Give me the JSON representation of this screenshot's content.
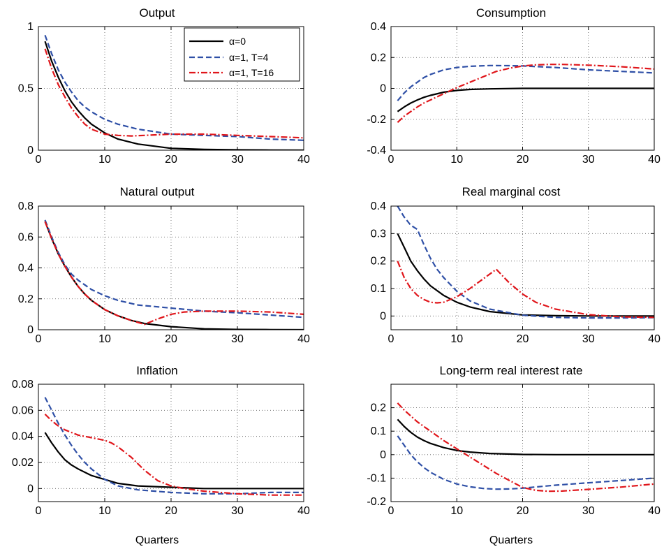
{
  "figure": {
    "legend": [
      {
        "label": "α=0",
        "color": "#000000",
        "dash": "solid"
      },
      {
        "label": "α=1, T=4",
        "color": "#2e4fa6",
        "dash": "dashed"
      },
      {
        "label": "α=1, T=16",
        "color": "#e0161b",
        "dash": "dashdot"
      }
    ]
  },
  "chart_data": [
    {
      "type": "line",
      "title": "Output",
      "xlabel": "",
      "ylabel": "",
      "xlim": [
        0,
        40
      ],
      "ylim": [
        0,
        1
      ],
      "xticks": [
        0,
        10,
        20,
        30,
        40
      ],
      "yticks": [
        0,
        0.5,
        1
      ],
      "ytick_labels": [
        "0",
        "0.5",
        "1"
      ],
      "grid": true,
      "legend": "top-right",
      "series": [
        {
          "name": "α=0",
          "x": [
            1,
            2,
            3,
            4,
            5,
            6,
            7,
            8,
            10,
            12,
            15,
            20,
            25,
            30,
            35,
            40
          ],
          "y": [
            0.88,
            0.72,
            0.59,
            0.48,
            0.39,
            0.32,
            0.26,
            0.21,
            0.14,
            0.09,
            0.05,
            0.015,
            0.006,
            0.003,
            0.001,
            0.0
          ]
        },
        {
          "name": "α=1, T=4",
          "x": [
            1,
            2,
            3,
            4,
            5,
            6,
            7,
            8,
            10,
            12,
            15,
            20,
            25,
            30,
            35,
            40
          ],
          "y": [
            0.93,
            0.78,
            0.65,
            0.55,
            0.47,
            0.4,
            0.35,
            0.31,
            0.25,
            0.21,
            0.17,
            0.13,
            0.12,
            0.11,
            0.09,
            0.08
          ]
        },
        {
          "name": "α=1, T=16",
          "x": [
            1,
            2,
            3,
            4,
            5,
            6,
            7,
            8,
            10,
            12,
            14,
            16,
            20,
            25,
            30,
            35,
            40
          ],
          "y": [
            0.82,
            0.66,
            0.53,
            0.43,
            0.34,
            0.27,
            0.21,
            0.17,
            0.13,
            0.12,
            0.115,
            0.12,
            0.13,
            0.13,
            0.12,
            0.11,
            0.1
          ]
        }
      ]
    },
    {
      "type": "line",
      "title": "Consumption",
      "xlabel": "",
      "ylabel": "",
      "xlim": [
        0,
        40
      ],
      "ylim": [
        -0.4,
        0.4
      ],
      "xticks": [
        0,
        10,
        20,
        30,
        40
      ],
      "yticks": [
        -0.4,
        -0.2,
        0,
        0.2,
        0.4
      ],
      "ytick_labels": [
        "-0.4",
        "-0.2",
        "0",
        "0.2",
        "0.4"
      ],
      "grid": true,
      "series": [
        {
          "name": "α=0",
          "x": [
            1,
            2,
            3,
            4,
            5,
            6,
            8,
            10,
            12,
            15,
            20,
            25,
            30,
            35,
            40
          ],
          "y": [
            -0.15,
            -0.12,
            -0.095,
            -0.075,
            -0.058,
            -0.045,
            -0.025,
            -0.013,
            -0.007,
            -0.003,
            0,
            0,
            0,
            0,
            0
          ]
        },
        {
          "name": "α=1, T=4",
          "x": [
            1,
            2,
            3,
            4,
            5,
            6,
            8,
            10,
            12,
            15,
            18,
            20,
            25,
            30,
            35,
            40
          ],
          "y": [
            -0.08,
            -0.03,
            0.01,
            0.04,
            0.07,
            0.09,
            0.12,
            0.135,
            0.143,
            0.148,
            0.147,
            0.145,
            0.135,
            0.12,
            0.11,
            0.1
          ]
        },
        {
          "name": "α=1, T=16",
          "x": [
            1,
            2,
            3,
            4,
            5,
            6,
            8,
            10,
            12,
            14,
            16,
            18,
            20,
            22,
            24,
            26,
            30,
            35,
            40
          ],
          "y": [
            -0.22,
            -0.18,
            -0.15,
            -0.12,
            -0.095,
            -0.075,
            -0.035,
            0.005,
            0.04,
            0.075,
            0.11,
            0.13,
            0.145,
            0.152,
            0.155,
            0.155,
            0.15,
            0.14,
            0.125
          ]
        }
      ]
    },
    {
      "type": "line",
      "title": "Natural output",
      "xlabel": "",
      "ylabel": "",
      "xlim": [
        0,
        40
      ],
      "ylim": [
        0,
        0.8
      ],
      "xticks": [
        0,
        10,
        20,
        30,
        40
      ],
      "yticks": [
        0,
        0.2,
        0.4,
        0.6,
        0.8
      ],
      "ytick_labels": [
        "0",
        "0.2",
        "0.4",
        "0.6",
        "0.8"
      ],
      "grid": true,
      "series": [
        {
          "name": "α=0",
          "x": [
            1,
            2,
            3,
            4,
            5,
            6,
            7,
            8,
            10,
            12,
            14,
            16,
            20,
            25,
            30,
            35,
            40
          ],
          "y": [
            0.7,
            0.59,
            0.49,
            0.41,
            0.34,
            0.28,
            0.23,
            0.19,
            0.13,
            0.09,
            0.06,
            0.04,
            0.02,
            0.006,
            0.002,
            0.001,
            0.0
          ]
        },
        {
          "name": "α=1, T=4",
          "x": [
            1,
            2,
            3,
            4,
            5,
            6,
            7,
            8,
            10,
            12,
            15,
            20,
            25,
            30,
            35,
            40
          ],
          "y": [
            0.71,
            0.6,
            0.5,
            0.42,
            0.36,
            0.32,
            0.29,
            0.26,
            0.22,
            0.19,
            0.16,
            0.14,
            0.12,
            0.11,
            0.095,
            0.08
          ]
        },
        {
          "name": "α=1, T=16",
          "x": [
            1,
            2,
            3,
            4,
            5,
            6,
            7,
            8,
            10,
            12,
            14,
            16,
            18,
            20,
            22,
            25,
            30,
            35,
            40
          ],
          "y": [
            0.7,
            0.59,
            0.49,
            0.41,
            0.34,
            0.28,
            0.23,
            0.19,
            0.13,
            0.09,
            0.06,
            0.035,
            0.07,
            0.1,
            0.115,
            0.12,
            0.12,
            0.115,
            0.1
          ]
        }
      ]
    },
    {
      "type": "line",
      "title": "Real marginal cost",
      "xlabel": "",
      "ylabel": "",
      "xlim": [
        0,
        40
      ],
      "ylim": [
        -0.05,
        0.4
      ],
      "xticks": [
        0,
        10,
        20,
        30,
        40
      ],
      "yticks": [
        0,
        0.1,
        0.2,
        0.3,
        0.4
      ],
      "ytick_labels": [
        "0",
        "0.1",
        "0.2",
        "0.3",
        "0.4"
      ],
      "grid": true,
      "series": [
        {
          "name": "α=0",
          "x": [
            1,
            2,
            3,
            4,
            5,
            6,
            8,
            10,
            12,
            15,
            20,
            25,
            30,
            35,
            40
          ],
          "y": [
            0.3,
            0.25,
            0.2,
            0.165,
            0.135,
            0.11,
            0.075,
            0.05,
            0.033,
            0.016,
            0.004,
            0.001,
            0,
            0,
            0
          ]
        },
        {
          "name": "α=1, T=4",
          "x": [
            1,
            2,
            3,
            4,
            5,
            6,
            7,
            8,
            10,
            12,
            15,
            20,
            25,
            30,
            35,
            40
          ],
          "y": [
            0.4,
            0.36,
            0.33,
            0.315,
            0.26,
            0.21,
            0.17,
            0.14,
            0.09,
            0.055,
            0.025,
            0.003,
            -0.005,
            -0.007,
            -0.007,
            -0.006
          ]
        },
        {
          "name": "α=1, T=16",
          "x": [
            1,
            2,
            3,
            4,
            5,
            6,
            7,
            8,
            9,
            10,
            12,
            14,
            16,
            18,
            20,
            22,
            25,
            30,
            35,
            40
          ],
          "y": [
            0.2,
            0.14,
            0.1,
            0.075,
            0.06,
            0.05,
            0.048,
            0.05,
            0.06,
            0.07,
            0.1,
            0.135,
            0.17,
            0.12,
            0.08,
            0.05,
            0.025,
            0.005,
            -0.003,
            -0.005
          ]
        }
      ]
    },
    {
      "type": "line",
      "title": "Inflation",
      "xlabel": "Quarters",
      "ylabel": "",
      "xlim": [
        0,
        40
      ],
      "ylim": [
        -0.01,
        0.08
      ],
      "xticks": [
        0,
        10,
        20,
        30,
        40
      ],
      "yticks": [
        0,
        0.02,
        0.04,
        0.06,
        0.08
      ],
      "ytick_labels": [
        "0",
        "0.02",
        "0.04",
        "0.06",
        "0.08"
      ],
      "grid": true,
      "series": [
        {
          "name": "α=0",
          "x": [
            1,
            2,
            3,
            4,
            5,
            6,
            8,
            10,
            12,
            15,
            20,
            25,
            30,
            35,
            40
          ],
          "y": [
            0.043,
            0.035,
            0.028,
            0.022,
            0.018,
            0.015,
            0.01,
            0.007,
            0.004,
            0.002,
            0.001,
            0,
            0,
            0,
            0
          ]
        },
        {
          "name": "α=1, T=4",
          "x": [
            1,
            2,
            3,
            4,
            5,
            6,
            7,
            8,
            10,
            12,
            15,
            20,
            25,
            30,
            35,
            40
          ],
          "y": [
            0.07,
            0.06,
            0.05,
            0.041,
            0.033,
            0.026,
            0.02,
            0.015,
            0.007,
            0.002,
            -0.001,
            -0.003,
            -0.004,
            -0.004,
            -0.003,
            -0.003
          ]
        },
        {
          "name": "α=1, T=16",
          "x": [
            1,
            2,
            3,
            4,
            5,
            6,
            7,
            8,
            9,
            10,
            11,
            12,
            13,
            14,
            15,
            16,
            17,
            18,
            20,
            22,
            25,
            30,
            35,
            40
          ],
          "y": [
            0.057,
            0.052,
            0.048,
            0.045,
            0.043,
            0.041,
            0.04,
            0.039,
            0.038,
            0.037,
            0.035,
            0.032,
            0.028,
            0.024,
            0.019,
            0.014,
            0.01,
            0.006,
            0.002,
            0.0,
            -0.002,
            -0.004,
            -0.005,
            -0.005
          ]
        }
      ]
    },
    {
      "type": "line",
      "title": "Long-term real interest rate",
      "xlabel": "Quarters",
      "ylabel": "",
      "xlim": [
        0,
        40
      ],
      "ylim": [
        -0.2,
        0.3
      ],
      "xticks": [
        0,
        10,
        20,
        30,
        40
      ],
      "yticks": [
        -0.2,
        -0.1,
        0,
        0.1,
        0.2
      ],
      "ytick_labels": [
        "-0.2",
        "-0.1",
        "0",
        "0.1",
        "0.2"
      ],
      "grid": true,
      "series": [
        {
          "name": "α=0",
          "x": [
            1,
            2,
            3,
            4,
            5,
            6,
            8,
            10,
            12,
            15,
            20,
            25,
            30,
            35,
            40
          ],
          "y": [
            0.15,
            0.12,
            0.095,
            0.075,
            0.06,
            0.048,
            0.03,
            0.018,
            0.011,
            0.005,
            0.001,
            0,
            0,
            0,
            0
          ]
        },
        {
          "name": "α=1, T=4",
          "x": [
            1,
            2,
            3,
            4,
            5,
            6,
            8,
            10,
            12,
            14,
            16,
            18,
            20,
            25,
            30,
            35,
            40
          ],
          "y": [
            0.08,
            0.04,
            0.0,
            -0.03,
            -0.055,
            -0.075,
            -0.105,
            -0.125,
            -0.137,
            -0.144,
            -0.147,
            -0.146,
            -0.143,
            -0.13,
            -0.12,
            -0.11,
            -0.1
          ]
        },
        {
          "name": "α=1, T=16",
          "x": [
            1,
            2,
            3,
            4,
            5,
            6,
            8,
            10,
            12,
            14,
            16,
            18,
            20,
            22,
            24,
            26,
            30,
            35,
            40
          ],
          "y": [
            0.22,
            0.19,
            0.165,
            0.14,
            0.12,
            0.1,
            0.06,
            0.025,
            -0.01,
            -0.045,
            -0.08,
            -0.11,
            -0.14,
            -0.152,
            -0.156,
            -0.155,
            -0.148,
            -0.138,
            -0.125
          ]
        }
      ]
    }
  ]
}
